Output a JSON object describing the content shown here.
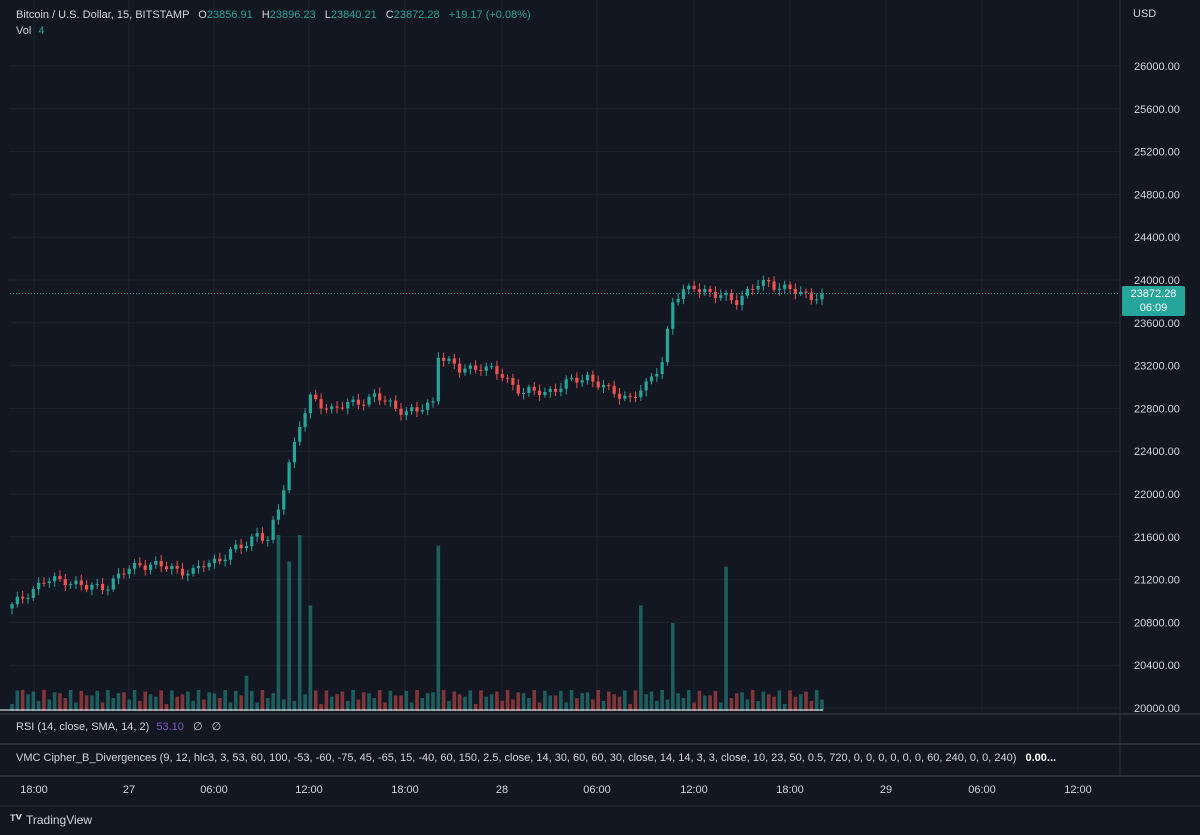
{
  "header": {
    "symbol": "Bitcoin / U.S. Dollar, 15, BITSTAMP",
    "open_key": "O",
    "open": "23856.91",
    "high_key": "H",
    "high": "23896.23",
    "low_key": "L",
    "low": "23840.21",
    "close_key": "C",
    "close": "23872.28",
    "change": "+19.17 (+0.08%)",
    "vol_label": "Vol",
    "vol_value": "4"
  },
  "indicators": {
    "rsi_label": "RSI (14, close, SMA, 14, 2)",
    "rsi_value": "53.10",
    "rsi_nan_1": "∅",
    "rsi_nan_2": "∅",
    "vmc_label": "VMC Cipher_B_Divergences (9, 12, hlc3, 3, 53, 60, 100, -53, -60, -75, 45, -65, 15, -40, 60, 150, 2.5, close, 14, 30, 60, 60, 30, close, 14, 14, 3, 3, close, 10, 23, 50, 0.5, 720, 0, 0, 0, 0, 0, 0, 60, 240, 0, 0, 240)",
    "vmc_value": "0.00..."
  },
  "price_axis": {
    "currency": "USD",
    "ticks": [
      "26000.00",
      "25600.00",
      "25200.00",
      "24800.00",
      "24400.00",
      "24000.00",
      "23600.00",
      "23200.00",
      "22800.00",
      "22400.00",
      "22000.00",
      "21600.00",
      "21200.00",
      "20800.00",
      "20400.00",
      "20000.00"
    ],
    "last_price": "23872.28",
    "countdown": "06:09"
  },
  "time_axis": {
    "labels": [
      "18:00",
      "27",
      "06:00",
      "12:00",
      "18:00",
      "28",
      "06:00",
      "12:00",
      "18:00",
      "29",
      "06:00",
      "12:00"
    ]
  },
  "brand": {
    "name": "TradingView"
  },
  "colors": {
    "up": "#26a69a",
    "down": "#ef5350",
    "background": "#131722",
    "grid": "#1f2330"
  },
  "chart_data": {
    "type": "candlestick",
    "title": "Bitcoin / U.S. Dollar, 15, BITSTAMP",
    "ylim": [
      20000,
      26100
    ],
    "y_ticks": [
      20000,
      20400,
      20800,
      21200,
      21600,
      22000,
      22400,
      22800,
      23200,
      23600,
      24000,
      24400,
      24800,
      25200,
      25600,
      26000
    ],
    "x_ticks": [
      "18:00",
      "27",
      "06:00",
      "12:00",
      "18:00",
      "28",
      "06:00",
      "12:00",
      "18:00",
      "29",
      "06:00",
      "12:00"
    ],
    "grid": true,
    "last_price": 23872.28,
    "approx_close_path": [
      [
        0,
        20950
      ],
      [
        3,
        21080
      ],
      [
        6,
        21180
      ],
      [
        10,
        21200
      ],
      [
        14,
        21120
      ],
      [
        18,
        21150
      ],
      [
        22,
        21300
      ],
      [
        24,
        21350
      ],
      [
        28,
        21320
      ],
      [
        30,
        21310
      ],
      [
        34,
        21260
      ],
      [
        36,
        21340
      ],
      [
        40,
        21420
      ],
      [
        44,
        21540
      ],
      [
        46,
        21640
      ],
      [
        48,
        21560
      ],
      [
        50,
        21850
      ],
      [
        52,
        22300
      ],
      [
        54,
        22650
      ],
      [
        56,
        22880
      ],
      [
        60,
        22800
      ],
      [
        64,
        22840
      ],
      [
        68,
        22920
      ],
      [
        72,
        22800
      ],
      [
        76,
        22770
      ],
      [
        79,
        22850
      ],
      [
        80,
        23320
      ],
      [
        84,
        23150
      ],
      [
        88,
        23200
      ],
      [
        92,
        23100
      ],
      [
        96,
        22950
      ],
      [
        100,
        22950
      ],
      [
        104,
        23030
      ],
      [
        108,
        23100
      ],
      [
        112,
        22960
      ],
      [
        116,
        22900
      ],
      [
        119,
        23000
      ],
      [
        122,
        23250
      ],
      [
        124,
        23800
      ],
      [
        128,
        23950
      ],
      [
        132,
        23850
      ],
      [
        136,
        23820
      ],
      [
        140,
        23950
      ],
      [
        142,
        23980
      ],
      [
        146,
        23900
      ],
      [
        150,
        23850
      ],
      [
        152,
        23872
      ]
    ],
    "volume_spikes": [
      {
        "i": 2,
        "v": 0.12
      },
      {
        "i": 44,
        "v": 0.2
      },
      {
        "i": 50,
        "v": 1.0
      },
      {
        "i": 52,
        "v": 0.85
      },
      {
        "i": 54,
        "v": 1.0
      },
      {
        "i": 56,
        "v": 0.6
      },
      {
        "i": 80,
        "v": 0.94
      },
      {
        "i": 118,
        "v": 0.6
      },
      {
        "i": 124,
        "v": 0.5
      },
      {
        "i": 134,
        "v": 0.82
      }
    ]
  }
}
